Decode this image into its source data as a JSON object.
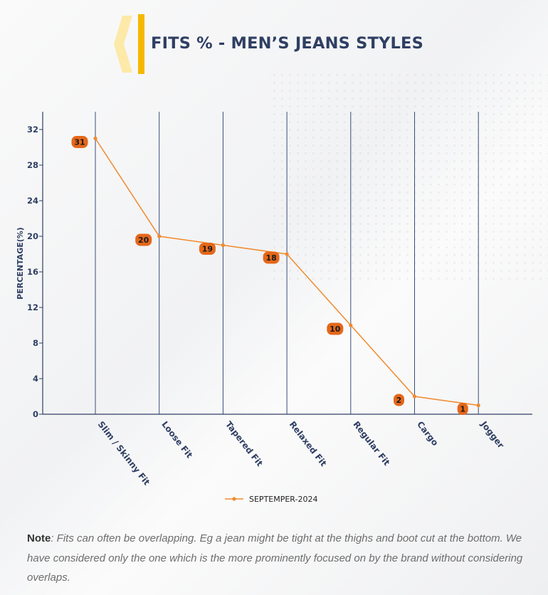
{
  "header": {
    "title": "FITS % - MEN’S JEANS STYLES"
  },
  "chart_data": {
    "type": "line",
    "title": "FITS % - MEN’S JEANS STYLES",
    "xlabel": "",
    "ylabel": "PERCENTAGE(%)",
    "categories": [
      "Slim / Skinny Fit",
      "Loose Fit",
      "Tapered Fit",
      "Relaxed Fit",
      "Regular Fit",
      "Cargo",
      "Jogger"
    ],
    "series": [
      {
        "name": "SEPTEMPER-2024",
        "values": [
          31,
          20,
          19,
          18,
          10,
          2,
          1
        ]
      }
    ],
    "ylim": [
      0,
      34
    ],
    "yticks": [
      0,
      4,
      8,
      12,
      16,
      20,
      24,
      28,
      32
    ],
    "grid": "vertical",
    "legend": "bottom-center"
  },
  "colors": {
    "line": "#f08a2e",
    "label_bg": "#e4671a",
    "axis": "#2f3f63",
    "title": "#2f3f63"
  },
  "note": {
    "label": "Note",
    "text": ": Fits can often be overlapping. Eg a jean might be tight at the thighs and boot cut at the bottom. We have considered only the one which is the more prominently focused on by the brand without considering overlaps."
  }
}
